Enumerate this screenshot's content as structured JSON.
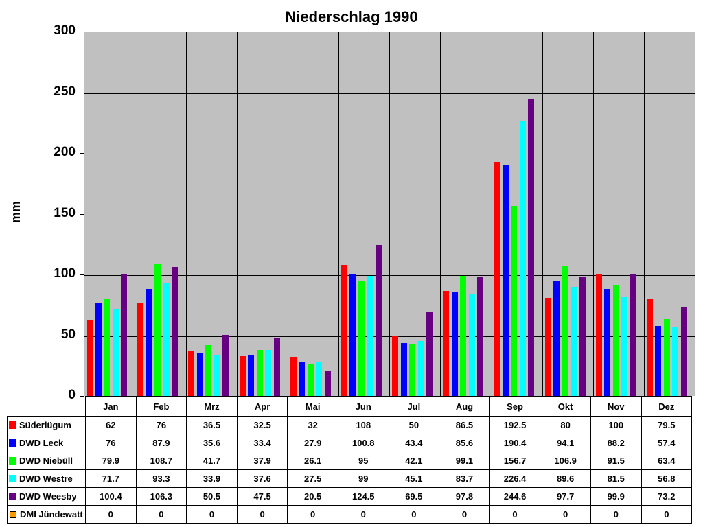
{
  "chart_data": {
    "type": "bar",
    "title": "Niederschlag 1990",
    "xlabel": "",
    "ylabel": "mm",
    "ylim": [
      0,
      300
    ],
    "yticks": [
      0,
      50,
      100,
      150,
      200,
      250,
      300
    ],
    "grid": true,
    "legend_position": "data-table-left",
    "categories": [
      "Jan",
      "Feb",
      "Mrz",
      "Apr",
      "Mai",
      "Jun",
      "Jul",
      "Aug",
      "Sep",
      "Okt",
      "Nov",
      "Dez"
    ],
    "series": [
      {
        "name": "Süderlügum",
        "color": "#ff0000",
        "values": [
          62,
          76,
          36.5,
          32.5,
          32,
          108,
          50,
          86.5,
          192.5,
          80,
          100,
          79.5
        ]
      },
      {
        "name": "DWD Leck",
        "color": "#0000ff",
        "values": [
          76,
          87.9,
          35.6,
          33.4,
          27.9,
          100.8,
          43.4,
          85.6,
          190.4,
          94.1,
          88.2,
          57.4
        ]
      },
      {
        "name": "DWD Niebüll",
        "color": "#00ff00",
        "values": [
          79.9,
          108.7,
          41.7,
          37.9,
          26.1,
          95,
          42.1,
          99.1,
          156.7,
          106.9,
          91.5,
          63.4
        ]
      },
      {
        "name": "DWD Westre",
        "color": "#00ffff",
        "values": [
          71.7,
          93.3,
          33.9,
          37.6,
          27.5,
          99,
          45.1,
          83.7,
          226.4,
          89.6,
          81.5,
          56.8
        ]
      },
      {
        "name": "DWD Weesby",
        "color": "#660080",
        "values": [
          100.4,
          106.3,
          50.5,
          47.5,
          20.5,
          124.5,
          69.5,
          97.8,
          244.6,
          97.7,
          99.9,
          73.2
        ]
      },
      {
        "name": "DMI Jündewatt",
        "color": "#ff9900",
        "values": [
          0,
          0,
          0,
          0,
          0,
          0,
          0,
          0,
          0,
          0,
          0,
          0
        ]
      }
    ]
  },
  "colors": {
    "plot_background": "#c0c0c0",
    "grid": "#000000"
  }
}
